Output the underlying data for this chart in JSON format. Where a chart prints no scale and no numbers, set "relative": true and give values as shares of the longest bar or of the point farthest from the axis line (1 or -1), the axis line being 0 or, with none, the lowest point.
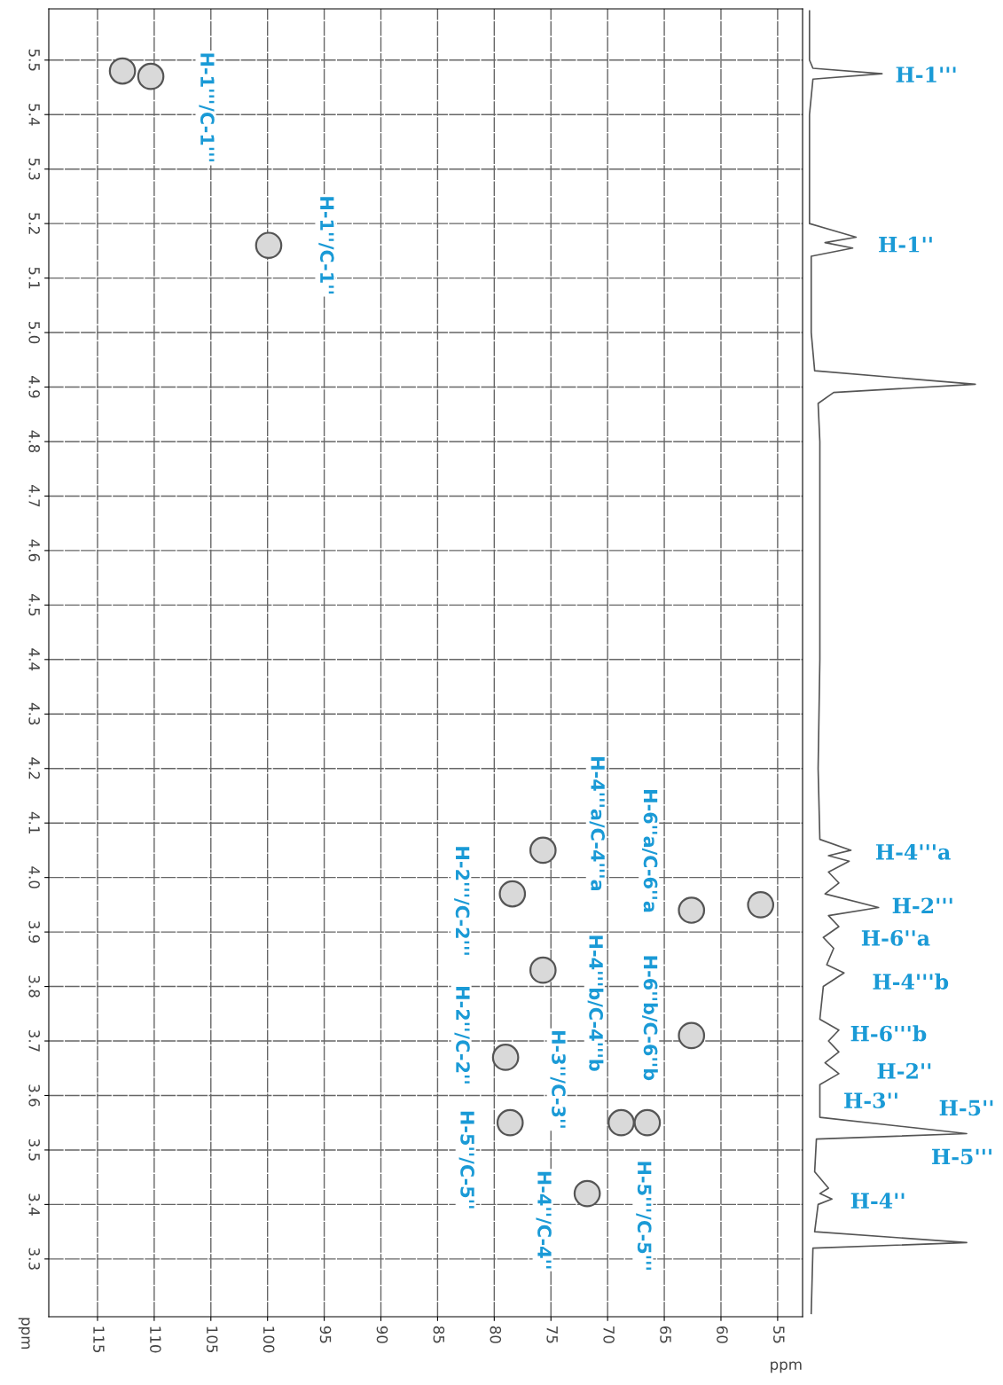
{
  "chart_data": [
    {
      "type": "scatter",
      "xlabel": "ppm",
      "ylabel": "ppm",
      "xlim": [
        119.3,
        52.8
      ],
      "ylim": [
        3.194,
        5.594
      ],
      "xticks": [
        115,
        110,
        105,
        100,
        95,
        90,
        85,
        80,
        75,
        70,
        65,
        60,
        55
      ],
      "yticks": [
        3.3,
        3.4,
        3.5,
        3.6,
        3.7,
        3.8,
        3.9,
        {
          "value": 4,
          "label": "4.0"
        },
        4.1,
        4.2,
        4.3,
        4.4,
        4.5,
        4.6,
        4.7,
        4.8,
        4.9,
        {
          "value": 5,
          "label": "5.0"
        },
        5.1,
        5.2,
        5.3,
        5.4,
        5.5
      ],
      "grid": true,
      "marker": "circle",
      "series": [
        {
          "color": "#555555",
          "x": [
            112.8,
            110.3,
            99.9,
            75.7,
            78.4,
            62.6,
            56.5,
            75.7,
            62.6,
            79.0,
            78.6,
            68.8,
            66.5,
            71.8
          ],
          "values": [
            5.48,
            5.47,
            5.16,
            4.05,
            3.97,
            3.94,
            3.95,
            3.83,
            3.71,
            3.67,
            3.55,
            3.55,
            3.55,
            3.42
          ]
        }
      ],
      "annotations": [
        {
          "text": "H-1'''/C-1'''",
          "x": 110.3,
          "y": 5.47
        },
        {
          "text": "H-1''/C-1''",
          "x": 99.9,
          "y": 5.16
        },
        {
          "text": "H-4'''a/C-4'''a",
          "x": 75.7,
          "y": 4.05
        },
        {
          "text": "H-6''a/C-6''a",
          "x": 62.6,
          "y": 3.94
        },
        {
          "text": "H-2'''/C-2'''",
          "x": 78.4,
          "y": 3.97
        },
        {
          "text": "H-4'''b/C-4'''b",
          "x": 75.7,
          "y": 3.83
        },
        {
          "text": "H-6''b/C-6''b",
          "x": 62.6,
          "y": 3.71
        },
        {
          "text": "H-2''/C-2''",
          "x": 79.0,
          "y": 3.67
        },
        {
          "text": "H-3''/C-3''",
          "x": 79.0,
          "y": 3.67
        },
        {
          "text": "H-5''/C-5''",
          "x": 78.6,
          "y": 3.55
        },
        {
          "text": "H-4''/C-4''",
          "x": 71.8,
          "y": 3.42
        },
        {
          "text": "H-5'''/C-5'''",
          "x": 66.5,
          "y": 3.55
        }
      ]
    },
    {
      "type": "line",
      "relative": true,
      "orientation": "horizontal",
      "ylim": [
        3.194,
        5.594
      ],
      "line_style": "solid",
      "series": [
        {
          "color": "#555555",
          "x": [
            5.59,
            5.5,
            5.485,
            5.475,
            5.465,
            5.4,
            5.2,
            5.175,
            5.165,
            5.155,
            5.14,
            5.0,
            4.93,
            4.905,
            4.89,
            4.87,
            4.8,
            4.6,
            4.4,
            4.2,
            4.07,
            4.05,
            4.04,
            4.03,
            4.01,
            3.99,
            3.97,
            3.945,
            3.93,
            3.91,
            3.89,
            3.87,
            3.84,
            3.825,
            3.8,
            3.74,
            3.72,
            3.7,
            3.68,
            3.66,
            3.64,
            3.62,
            3.56,
            3.53,
            3.52,
            3.46,
            3.43,
            3.42,
            3.41,
            3.4,
            3.35,
            3.33,
            3.32,
            3.2
          ],
          "values": [
            0.04,
            0.04,
            0.06,
            0.46,
            0.06,
            0.04,
            0.04,
            0.31,
            0.13,
            0.29,
            0.05,
            0.05,
            0.07,
            1.0,
            0.18,
            0.09,
            0.1,
            0.1,
            0.1,
            0.09,
            0.1,
            0.28,
            0.15,
            0.27,
            0.15,
            0.21,
            0.13,
            0.44,
            0.15,
            0.21,
            0.12,
            0.18,
            0.14,
            0.24,
            0.12,
            0.1,
            0.21,
            0.15,
            0.21,
            0.13,
            0.21,
            0.1,
            0.1,
            0.95,
            0.08,
            0.07,
            0.15,
            0.1,
            0.17,
            0.09,
            0.07,
            0.95,
            0.06,
            0.05
          ]
        }
      ],
      "annotations": [
        {
          "text": "H-1'''",
          "y": 5.475,
          "x": 0.46
        },
        {
          "text": "H-1''",
          "y": 5.155,
          "x": 0.29
        },
        {
          "text": "H-4'''a",
          "y": 4.05,
          "x": 0.28
        },
        {
          "text": "H-2'''",
          "y": 3.945,
          "x": 0.44
        },
        {
          "text": "H-6''a",
          "y": 3.91,
          "x": 0.21
        },
        {
          "text": "H-4'''b",
          "y": 3.825,
          "x": 0.24
        },
        {
          "text": "H-6'''b",
          "y": 3.72,
          "x": 0.21
        },
        {
          "text": "H-2''",
          "y": 3.64,
          "x": 0.21
        },
        {
          "text": "H-3''",
          "y": 3.62,
          "x": 0.1
        },
        {
          "text": "H-5''",
          "y": 3.53,
          "x": 0.95
        },
        {
          "text": "H-5'''",
          "y": 3.53,
          "x": 0.95
        },
        {
          "text": "H-4''",
          "y": 3.41,
          "x": 0.17
        }
      ]
    }
  ]
}
